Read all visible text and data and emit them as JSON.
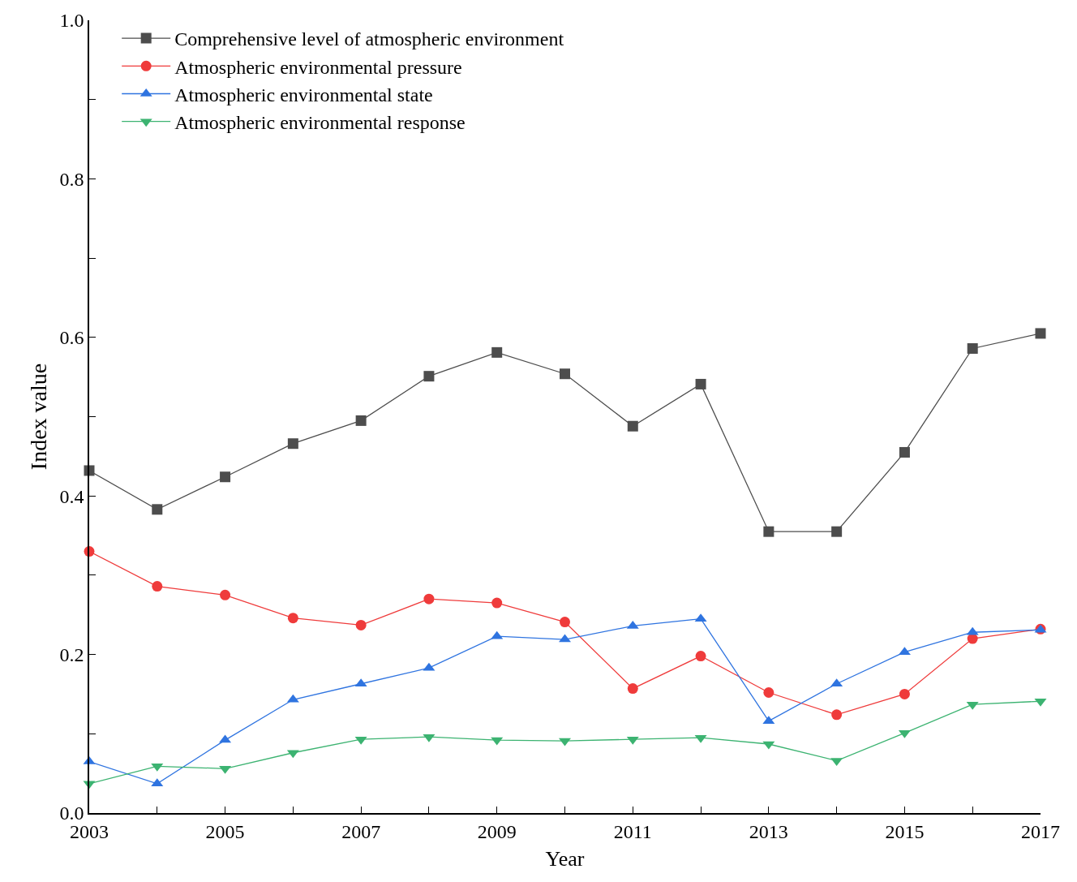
{
  "chart_data": {
    "type": "line",
    "xlabel": "Year",
    "ylabel": "Index value",
    "x": [
      2003,
      2004,
      2005,
      2006,
      2007,
      2008,
      2009,
      2010,
      2011,
      2012,
      2013,
      2014,
      2015,
      2016,
      2017
    ],
    "series": [
      {
        "name": "Comprehensive level of atmospheric environment",
        "color": "#4d4d4d",
        "marker": "square",
        "values": [
          0.432,
          0.383,
          0.424,
          0.466,
          0.495,
          0.551,
          0.581,
          0.554,
          0.488,
          0.541,
          0.355,
          0.355,
          0.455,
          0.586,
          0.605
        ]
      },
      {
        "name": "Atmospheric environmental pressure",
        "color": "#ef3b3b",
        "marker": "circle",
        "values": [
          0.33,
          0.286,
          0.275,
          0.246,
          0.237,
          0.27,
          0.265,
          0.241,
          0.157,
          0.198,
          0.152,
          0.124,
          0.15,
          0.22,
          0.232
        ]
      },
      {
        "name": "Atmospheric environmental state",
        "color": "#2f74e0",
        "marker": "triangle",
        "values": [
          0.065,
          0.037,
          0.092,
          0.143,
          0.163,
          0.183,
          0.223,
          0.219,
          0.236,
          0.245,
          0.116,
          0.163,
          0.203,
          0.228,
          0.231
        ]
      },
      {
        "name": "Atmospheric environmental response",
        "color": "#3cb371",
        "marker": "triangle-down",
        "values": [
          0.037,
          0.059,
          0.056,
          0.076,
          0.093,
          0.096,
          0.092,
          0.091,
          0.093,
          0.095,
          0.087,
          0.066,
          0.101,
          0.137,
          0.141
        ]
      }
    ],
    "xlim": [
      2003,
      2017
    ],
    "xticks": [
      2003,
      {
        "value": 2004,
        "label": null
      },
      2005,
      {
        "value": 2006,
        "label": null
      },
      2007,
      {
        "value": 2008,
        "label": null
      },
      2009,
      {
        "value": 2010,
        "label": null
      },
      2011,
      {
        "value": 2012,
        "label": null
      },
      2013,
      {
        "value": 2014,
        "label": null
      },
      2015,
      {
        "value": 2016,
        "label": null
      },
      2017
    ],
    "ylim": [
      0,
      1
    ],
    "yticks": [
      {
        "value": 0,
        "label": "0.0"
      },
      {
        "value": 0.1,
        "label": null
      },
      0.2,
      {
        "value": 0.3,
        "label": null
      },
      0.4,
      {
        "value": 0.5,
        "label": null
      },
      0.6,
      {
        "value": 0.7,
        "label": null
      },
      0.8,
      {
        "value": 0.9,
        "label": null
      },
      {
        "value": 1,
        "label": "1.0"
      }
    ],
    "legend": "top left",
    "line_style": "solid"
  }
}
